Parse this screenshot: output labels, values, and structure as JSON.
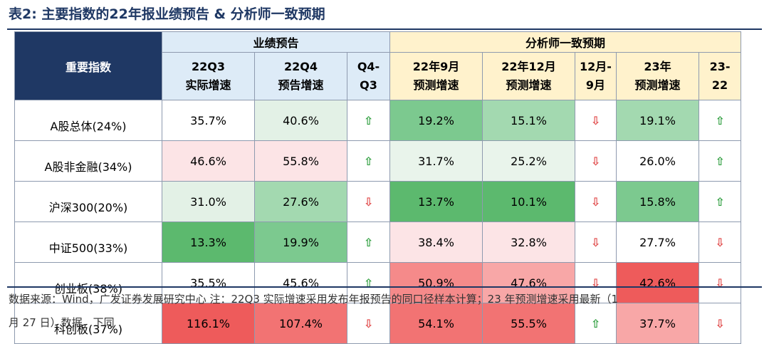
{
  "title": "表2:  主要指数的22年报业绩预告  &  分析师一致预期",
  "header": {
    "index_col": "重要指数",
    "group1": "业绩预告",
    "group2": "分析师一致预期",
    "cols": [
      [
        "22Q3",
        "实际增速"
      ],
      [
        "22Q4",
        "预告增速"
      ],
      [
        "Q4-",
        "Q3"
      ],
      [
        "22年9月",
        "预测增速"
      ],
      [
        "22年12月",
        "预测增速"
      ],
      [
        "12月-",
        "9月"
      ],
      [
        "23年",
        "预测增速"
      ],
      [
        "23-",
        "22"
      ]
    ]
  },
  "rows": [
    {
      "name": "A股总体(24%)",
      "c1": "35.7%",
      "c2": "40.6%",
      "a1": "up",
      "c3": "19.2%",
      "c4": "15.1%",
      "a2": "down",
      "c5": "19.1%",
      "a3": "up",
      "bg": [
        "#FFFFFF",
        "#E3F1E6",
        "#FFFFFF",
        "#7CC98F",
        "#A3D9B0",
        "#FFFFFF",
        "#A3D9B0",
        "#FFFFFF"
      ]
    },
    {
      "name": "A股非金融(34%)",
      "c1": "46.6%",
      "c2": "55.8%",
      "a1": "up",
      "c3": "31.7%",
      "c4": "25.2%",
      "a2": "down",
      "c5": "26.0%",
      "a3": "up",
      "bg": [
        "#FCE4E6",
        "#FCE4E6",
        "#FFFFFF",
        "#E9F4EB",
        "#E9F4EB",
        "#FFFFFF",
        "#FFFFFF",
        "#FFFFFF"
      ]
    },
    {
      "name": "沪深300(20%)",
      "c1": "31.0%",
      "c2": "27.6%",
      "a1": "down",
      "c3": "13.7%",
      "c4": "10.1%",
      "a2": "down",
      "c5": "15.8%",
      "a3": "up",
      "bg": [
        "#E3F1E6",
        "#A3D9B0",
        "#FFFFFF",
        "#5CB96E",
        "#5CB96E",
        "#FFFFFF",
        "#7CC98F",
        "#FFFFFF"
      ]
    },
    {
      "name": "中证500(33%)",
      "c1": "13.3%",
      "c2": "19.9%",
      "a1": "up",
      "c3": "38.4%",
      "c4": "32.8%",
      "a2": "down",
      "c5": "27.7%",
      "a3": "down",
      "bg": [
        "#5CB96E",
        "#7CC98F",
        "#FFFFFF",
        "#FCE4E6",
        "#FCE4E6",
        "#FFFFFF",
        "#FFFFFF",
        "#FFFFFF"
      ]
    },
    {
      "name": "创业板(38%)",
      "c1": "35.5%",
      "c2": "45.6%",
      "a1": "up",
      "c3": "50.9%",
      "c4": "47.6%",
      "a2": "down",
      "c5": "42.6%",
      "a3": "down",
      "bg": [
        "#FFFFFF",
        "#FFFFFF",
        "#FFFFFF",
        "#F58A8A",
        "#F8A7A7",
        "#FFFFFF",
        "#EE5B5B",
        "#FFFFFF"
      ]
    },
    {
      "name": "科创板(37%)",
      "c1": "116.1%",
      "c2": "107.4%",
      "a1": "down",
      "c3": "54.1%",
      "c4": "55.5%",
      "a2": "up",
      "c5": "37.7%",
      "a3": "down",
      "bg": [
        "#EE5B5B",
        "#F27373",
        "#FFFFFF",
        "#F27373",
        "#F27373",
        "#FFFFFF",
        "#F8A7A7",
        "#FFFFFF"
      ]
    }
  ],
  "note_line1": "数据来源：Wind，广发证券发展研究中心  注：22Q3 实际增速采用发布年报预告的同口径样本计算；23 年预测增速采用最新（1",
  "note_line2": "月 27 日）数据，下同",
  "arrows": {
    "up": "⇧",
    "down": "⇩"
  }
}
